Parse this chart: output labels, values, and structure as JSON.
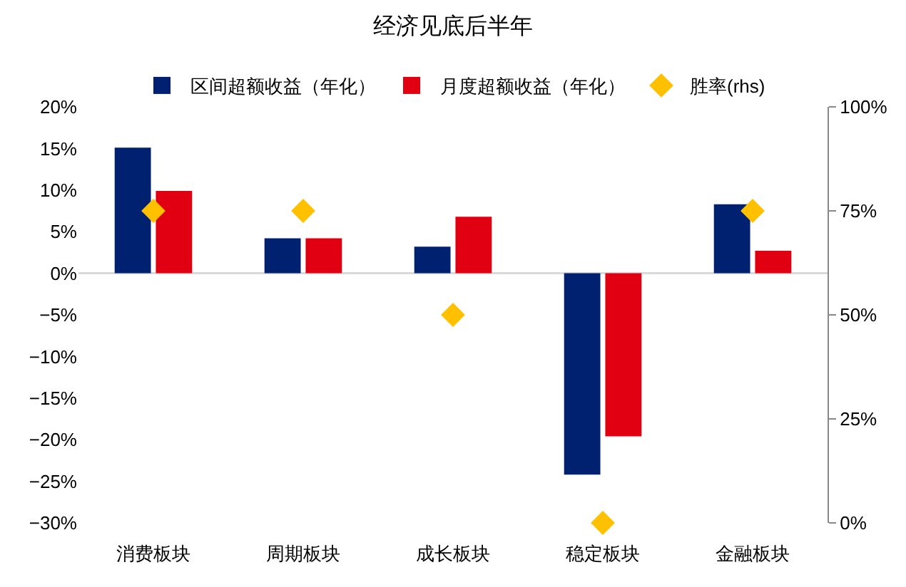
{
  "chart_data": {
    "type": "bar",
    "title": "经济见底后半年",
    "categories": [
      "消费板块",
      "周期板块",
      "成长板块",
      "稳定板块",
      "金融板块"
    ],
    "series": [
      {
        "name": "区间超额收益（年化）",
        "color": "#002070",
        "values": [
          15.1,
          4.2,
          3.2,
          -24.2,
          8.3
        ]
      },
      {
        "name": "月度超额收益（年化）",
        "color": "#e00012",
        "values": [
          9.9,
          4.2,
          6.8,
          -19.6,
          2.7
        ]
      },
      {
        "name": "胜率(rhs)",
        "type": "scatter",
        "axis": "y2",
        "marker": "diamond",
        "color": "#ffc000",
        "x": [
          "消费板块",
          "周期板块",
          "成长板块",
          "稳定板块",
          "金融板块"
        ],
        "values": [
          75,
          75,
          50,
          0,
          75
        ]
      }
    ],
    "ylim": [
      -30,
      20
    ],
    "yticks": [
      {
        "value": -30,
        "label": "−30%"
      },
      {
        "value": -25,
        "label": "−25%"
      },
      {
        "value": -20,
        "label": "−20%"
      },
      {
        "value": -15,
        "label": "−15%"
      },
      {
        "value": -10,
        "label": "−10%"
      },
      {
        "value": -5,
        "label": "−5%"
      },
      {
        "value": 0,
        "label": "0%"
      },
      {
        "value": 5,
        "label": "5%"
      },
      {
        "value": 10,
        "label": "10%"
      },
      {
        "value": 15,
        "label": "15%"
      },
      {
        "value": 20,
        "label": "20%"
      }
    ],
    "y2lim": [
      0,
      100
    ],
    "y2ticks": [
      {
        "value": 0,
        "label": "0%"
      },
      {
        "value": 25,
        "label": "25%"
      },
      {
        "value": 50,
        "label": "50%"
      },
      {
        "value": 75,
        "label": "75%"
      },
      {
        "value": 100,
        "label": "100%"
      }
    ],
    "ref_lines": [
      {
        "axis": "y",
        "value": 0,
        "color": "#d9d9d9"
      }
    ],
    "legend": "top",
    "grid": false
  }
}
